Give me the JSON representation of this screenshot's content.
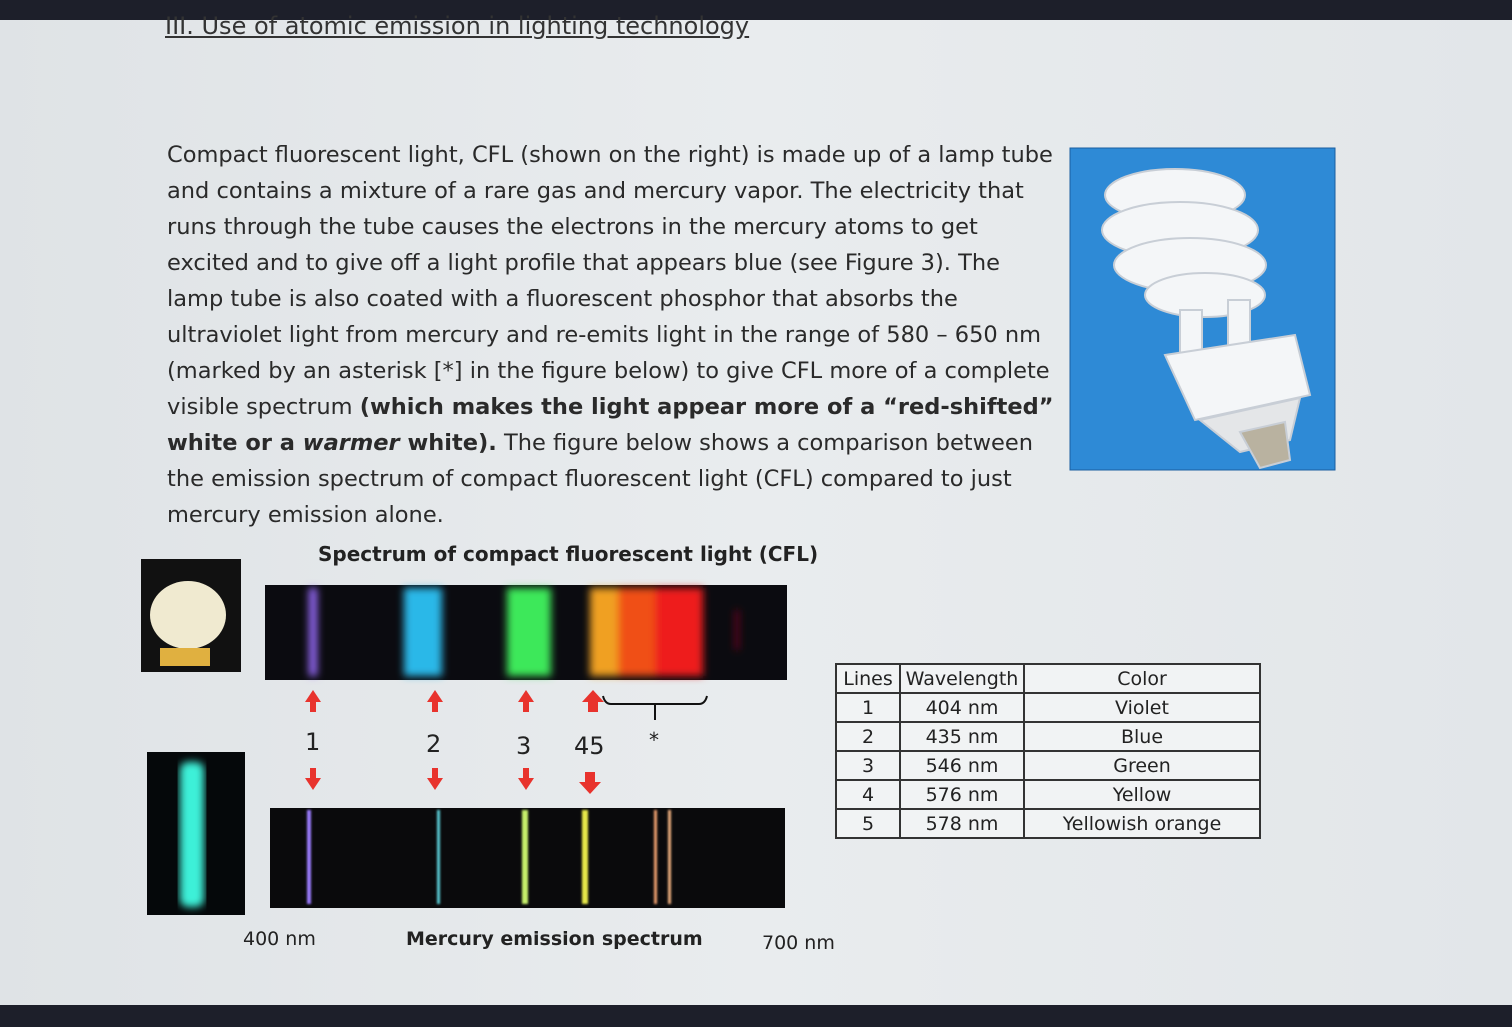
{
  "heading": "III. Use of atomic emission in lighting technology",
  "paragraph": {
    "runs": [
      "Compact fluorescent light, CFL (shown on the right) is made up of a lamp tube and contains a mixture of a rare gas and mercury vapor.  The electricity that runs through the tube causes the electrons in the mercury atoms to get excited and to give off a light profile that appears blue (see Figure 3).  The lamp tube is also coated with a fluorescent phosphor that absorbs the ultraviolet light from mercury and re-emits light in the range of 580 – 650 nm (marked by an asterisk [*] in the figure below) to give CFL more of a complete visible spectrum ",
      "(which makes the light appear more of a “red-shifted” white or a ",
      "warmer",
      " white).",
      "  The figure below shows a comparison between the emission spectrum of compact fluorescent light (CFL) compared to just mercury emission alone."
    ]
  },
  "figure": {
    "title": "Spectrum of compact fluorescent light (CFL)",
    "line_labels": [
      "1",
      "2",
      "3",
      "45",
      "*"
    ],
    "min_label": "400 nm",
    "caption": "Mercury emission spectrum",
    "max_label": "700 nm"
  },
  "table": {
    "headers": [
      "Lines",
      "Wavelength",
      "Color"
    ],
    "rows": [
      [
        "1",
        "404 nm",
        "Violet"
      ],
      [
        "2",
        "435 nm",
        "Blue"
      ],
      [
        "3",
        "546 nm",
        "Green"
      ],
      [
        "4",
        "576 nm",
        "Yellow"
      ],
      [
        "5",
        "578 nm",
        "Yellowish orange"
      ]
    ]
  }
}
